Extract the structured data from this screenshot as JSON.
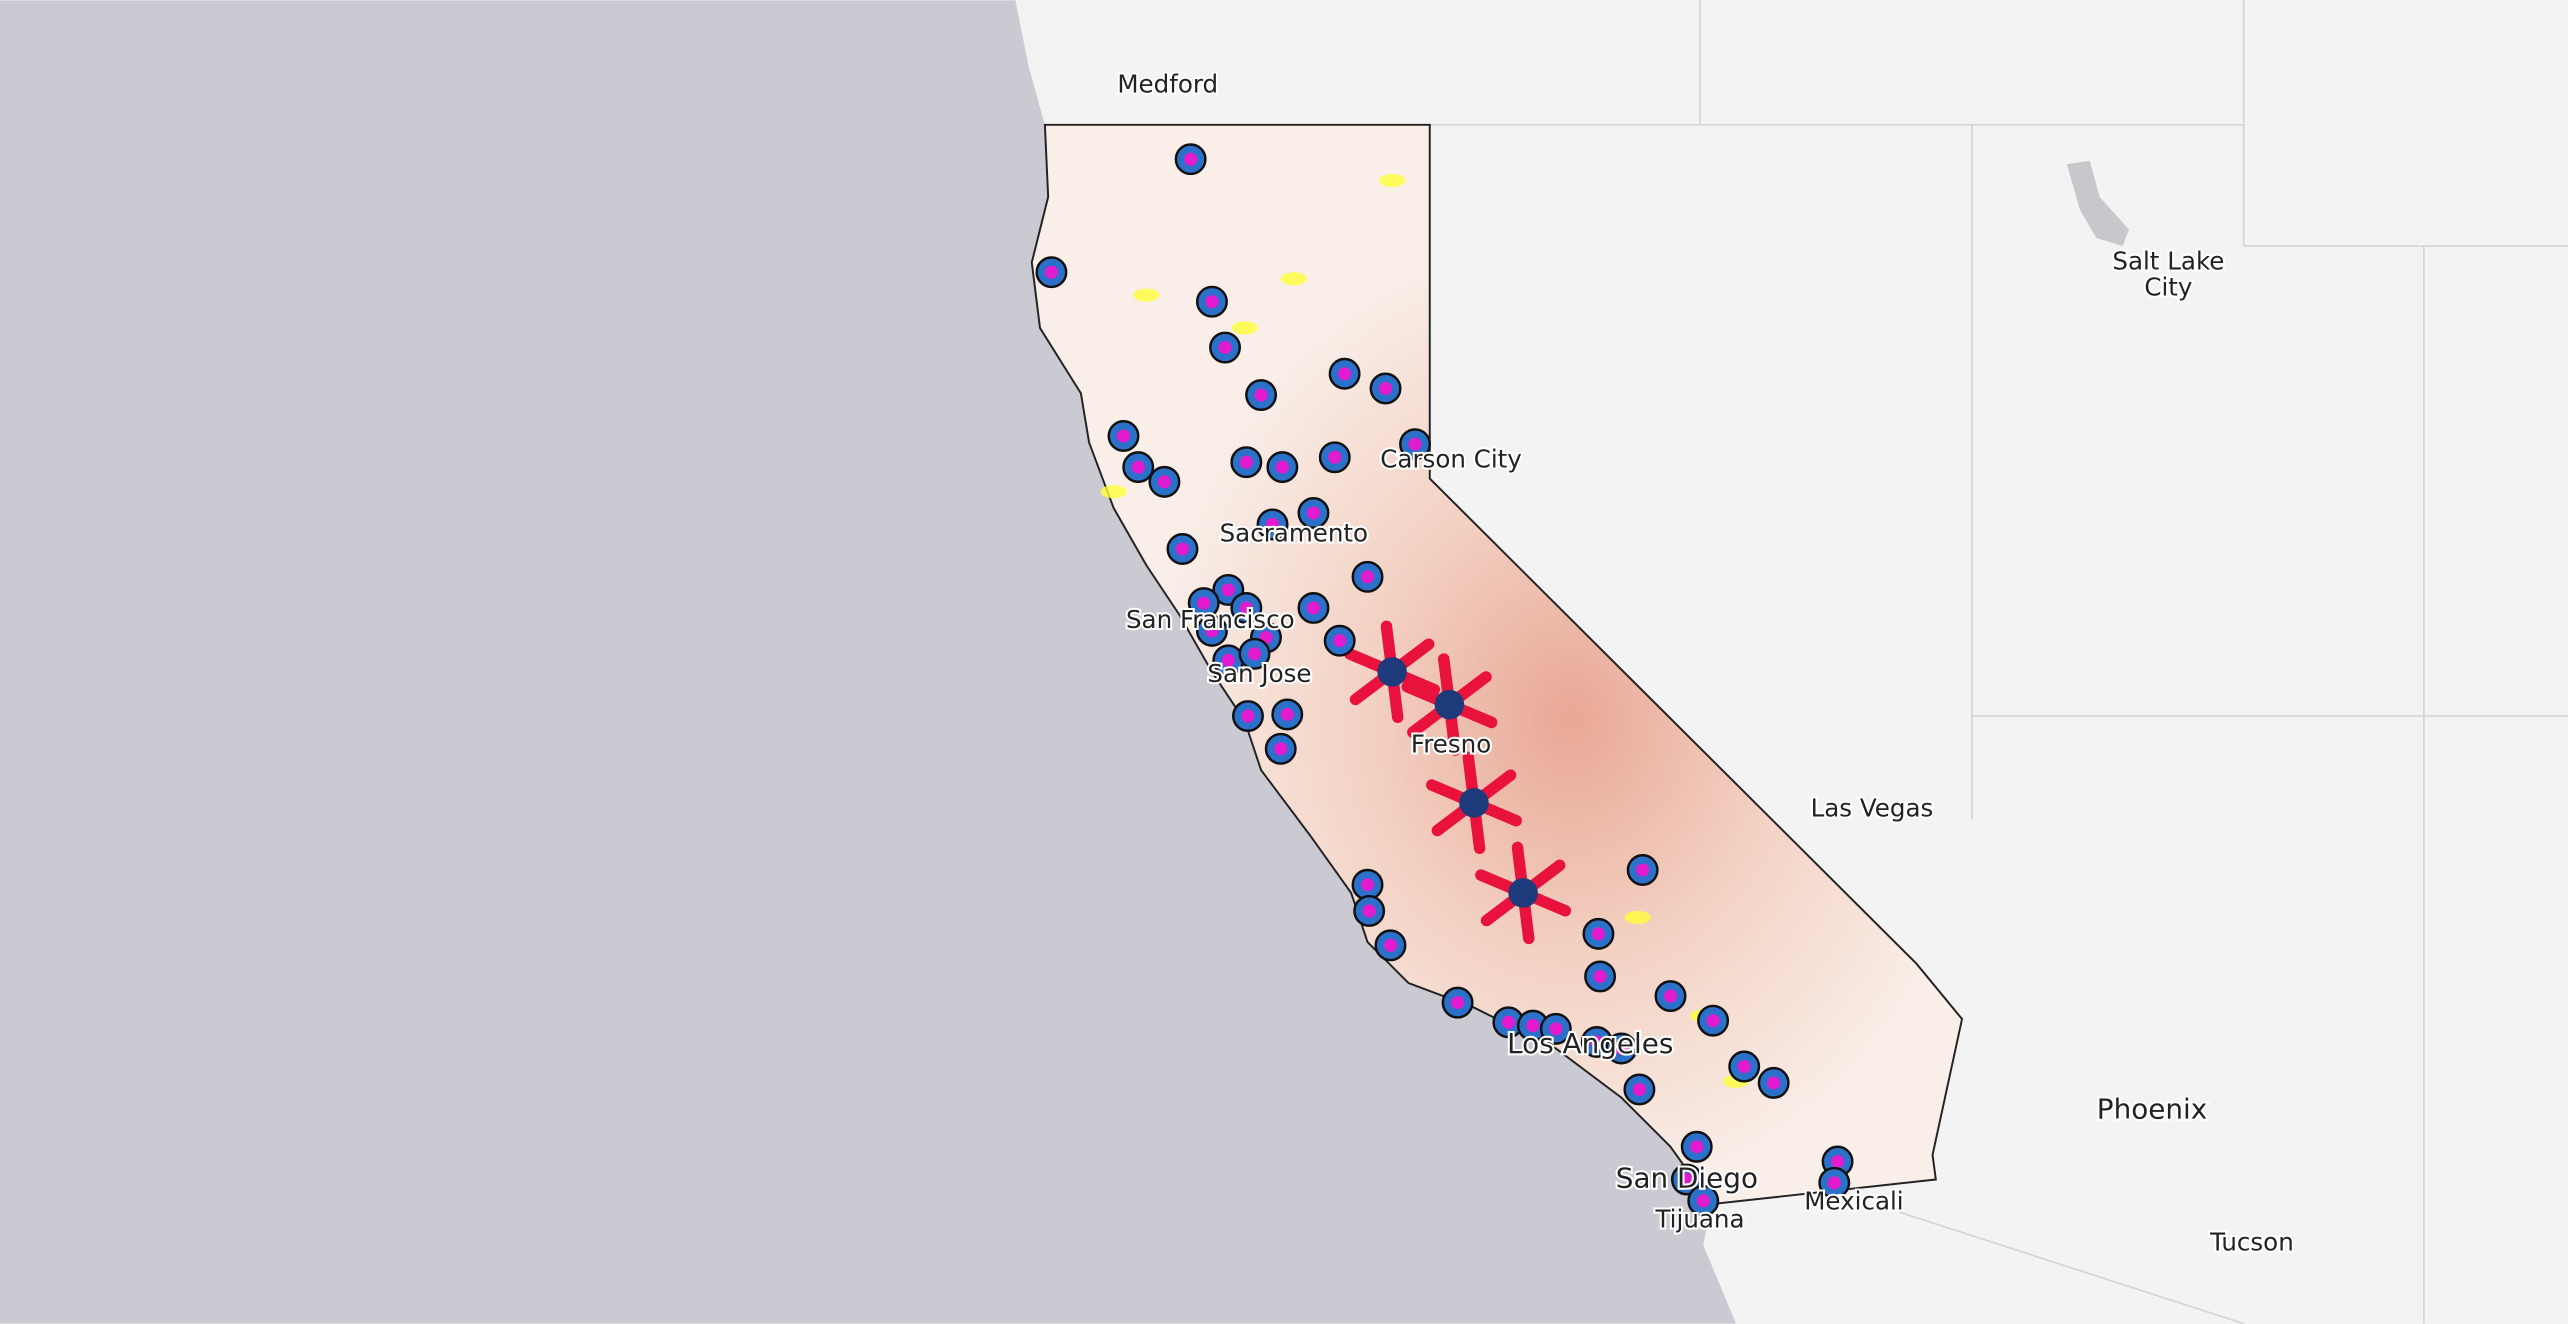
{
  "map": {
    "labels": [
      "Medford",
      "Salt Lake",
      "City",
      "Carson City",
      "Sacramento",
      "San Francisco",
      "San Jose",
      "Fresno",
      "Las Vegas",
      "Los Angeles",
      "Phoenix",
      "San Diego",
      "Tijuana",
      "Mexicali",
      "Tucson"
    ]
  }
}
